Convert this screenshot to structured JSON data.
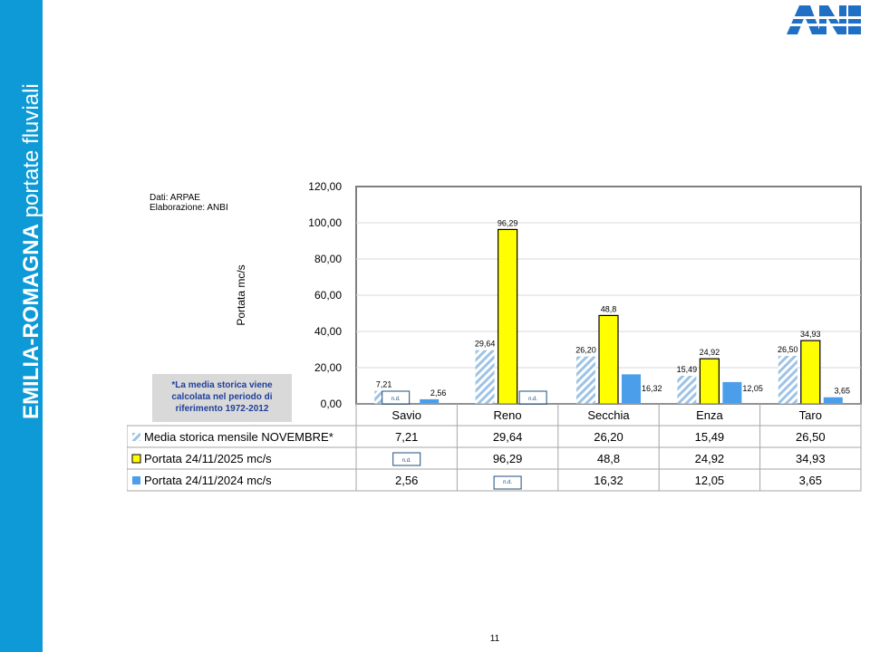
{
  "sidebar": {
    "title_bold": "EMILIA-ROMAGNA",
    "title_light": "portate fluviali"
  },
  "source_note": {
    "line1": "Dati: ARPAE",
    "line2": "Elaborazione: ANBI"
  },
  "media_note": {
    "line1": "*La media storica viene",
    "line2": "calcolata nel periodo di",
    "line3": "riferimento 1972-2012"
  },
  "page_number": "11",
  "nd_label": "n.d.",
  "colors": {
    "sidebar": "#0d9ad6",
    "media": "#9dc3e6",
    "portata_2025": "#ffff00",
    "portata_2024": "#4a9eea",
    "logo": "#1f6fc5"
  },
  "chart_data": {
    "type": "bar",
    "ylabel": "Portata mc/s",
    "ylim": [
      0,
      120
    ],
    "yticks": [
      "0,00",
      "20,00",
      "40,00",
      "60,00",
      "80,00",
      "100,00",
      "120,00"
    ],
    "categories": [
      "Savio",
      "Reno",
      "Secchia",
      "Enza",
      "Taro"
    ],
    "grid": true,
    "series": [
      {
        "name": "Media storica mensile NOVEMBRE*",
        "values": [
          7.21,
          29.64,
          26.2,
          15.49,
          26.5
        ],
        "labels": [
          "7,21",
          "29,64",
          "26,20",
          "15,49",
          "26,50"
        ],
        "pattern": "hatch"
      },
      {
        "name": "Portata 24/11/2025 mc/s",
        "values": [
          null,
          96.29,
          48.8,
          24.92,
          34.93
        ],
        "labels": [
          "n.d.",
          "96,29",
          "48,8",
          "24,92",
          "34,93"
        ],
        "pattern": "solid-outlined"
      },
      {
        "name": "Portata 24/11/2024 mc/s",
        "values": [
          2.56,
          null,
          16.32,
          12.05,
          3.65
        ],
        "labels": [
          "2,56",
          "n.d.",
          "16,32",
          "12,05",
          "3,65"
        ],
        "pattern": "solid"
      }
    ]
  }
}
